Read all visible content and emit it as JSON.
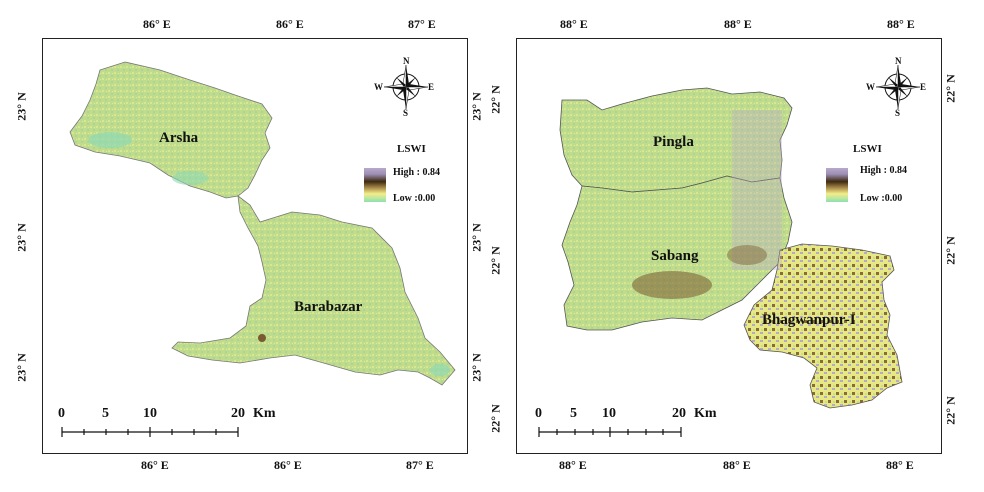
{
  "left_map": {
    "top_ticks": [
      "86° E",
      "86° E",
      "87° E"
    ],
    "bottom_ticks": [
      "86° E",
      "86° E",
      "87° E"
    ],
    "left_ticks": [
      "23° N",
      "23° N",
      "23° N"
    ],
    "right_ticks": [
      "23° N",
      "23° N",
      "23° N"
    ],
    "regions": [
      "Arsha",
      "Barabazar"
    ],
    "legend": {
      "title": "LSWI",
      "high": "High : 0.84",
      "low": "Low :0.00"
    },
    "north_arrow": {
      "n": "N",
      "e": "E",
      "s": "S",
      "w": "W"
    },
    "scale_bar": {
      "labels": [
        "0",
        "5",
        "10",
        "20"
      ],
      "unit": "Km"
    }
  },
  "right_map": {
    "top_ticks": [
      "88° E",
      "88° E",
      "88° E"
    ],
    "bottom_ticks": [
      "88° E",
      "88° E",
      "88° E"
    ],
    "left_ticks": [
      "22° N",
      "22° N",
      "22° N"
    ],
    "right_ticks": [
      "22° N",
      "22° N",
      "22° N"
    ],
    "regions": [
      "Pingla",
      "Sabang",
      "Bhagwanpur-I"
    ],
    "legend": {
      "title": "LSWI",
      "high": "High : 0.84",
      "low": "Low :0.00"
    },
    "north_arrow": {
      "n": "N",
      "e": "E",
      "s": "S",
      "w": "W"
    },
    "scale_bar": {
      "labels": [
        "0",
        "5",
        "10",
        "20"
      ],
      "unit": "Km"
    }
  },
  "colors": {
    "vegetation": "#b8dc8a",
    "water": "#7fd4b0",
    "built_up": "#b9a9c9",
    "dark_soil": "#6b4e2a",
    "bright": "#eef08c"
  }
}
